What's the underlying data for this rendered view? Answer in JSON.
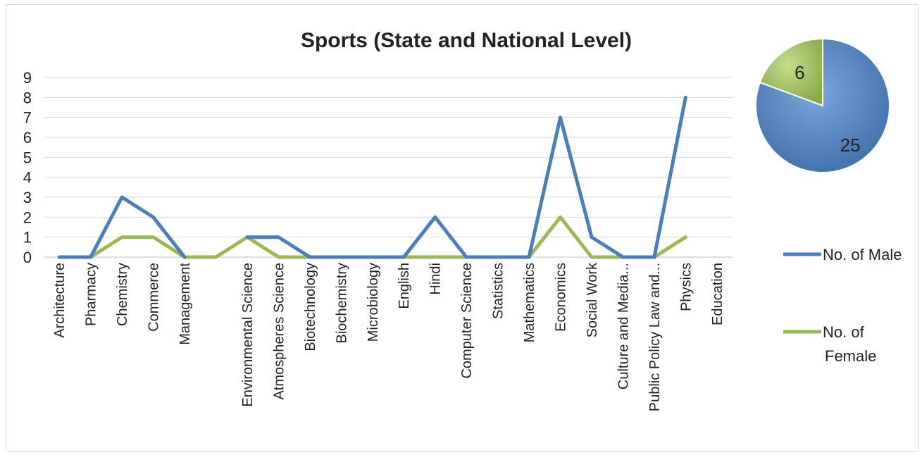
{
  "chart_data": [
    {
      "type": "line",
      "title": "Sports (State and National Level)",
      "categories": [
        "Architecture",
        "Pharmacy",
        "Chemistry",
        "Commerce",
        "Management",
        "",
        "Environmental Science",
        "Atmospheres Science",
        "Biotechnology",
        "Biochemistry",
        "Microbiology",
        "English",
        "Hindi",
        "Computer Science",
        "Statistics",
        "Mathematics",
        "Economics",
        "Social Work",
        "Culture and Media...",
        "Public Policy Law and...",
        "Physics",
        "Education"
      ],
      "series": [
        {
          "name": "No. of Male",
          "color": "#4a7ebb",
          "values": [
            0,
            0,
            3,
            2,
            0,
            null,
            1,
            1,
            0,
            0,
            0,
            0,
            2,
            0,
            0,
            0,
            7,
            1,
            0,
            0,
            8,
            null
          ]
        },
        {
          "name": "No. of Female",
          "color": "#98b954",
          "values": [
            0,
            0,
            1,
            1,
            0,
            0,
            1,
            0,
            0,
            0,
            0,
            0,
            0,
            0,
            0,
            0,
            2,
            0,
            0,
            0,
            1,
            null
          ]
        }
      ],
      "legend_entries": [
        [
          "No. of Male"
        ],
        [
          "No. of",
          "Female"
        ]
      ],
      "yticks": [
        "0",
        "1",
        "2",
        "3",
        "4",
        "5",
        "6",
        "7",
        "8",
        "9"
      ],
      "ylim": [
        0,
        9
      ],
      "grid": true,
      "legend": "right"
    },
    {
      "type": "pie",
      "slices": [
        {
          "label": "25",
          "value": 25,
          "color": "#4a7ebb"
        },
        {
          "label": "6",
          "value": 6,
          "color": "#98b954"
        }
      ]
    }
  ]
}
